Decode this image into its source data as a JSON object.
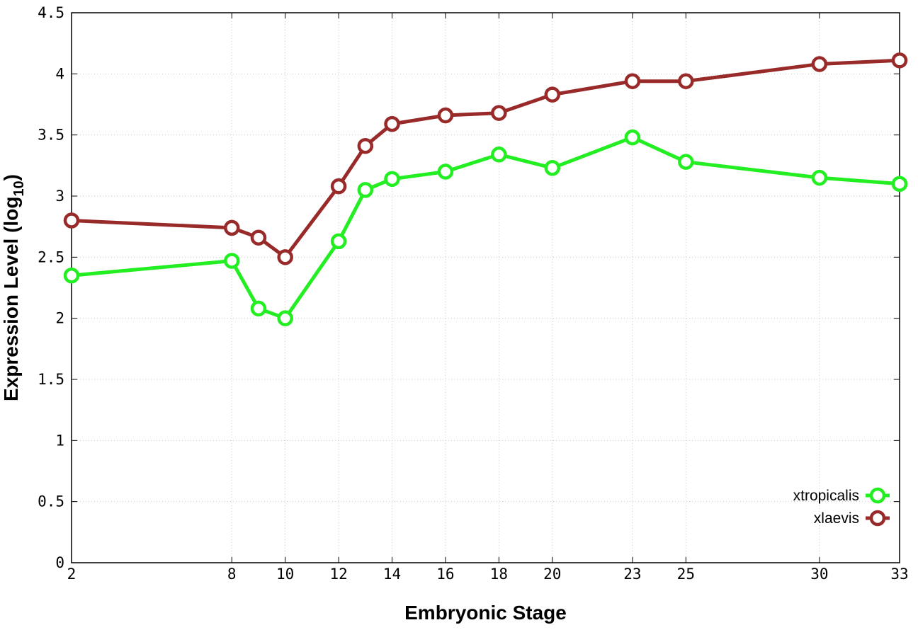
{
  "chart_data": {
    "type": "line",
    "xlabel": "Embryonic Stage",
    "ylabel_main": "Expression Level (log",
    "ylabel_sub": "10",
    "ylabel_close": ")",
    "x": [
      2,
      8,
      9,
      10,
      12,
      13,
      14,
      16,
      18,
      20,
      23,
      25,
      30,
      33
    ],
    "x_ticks": [
      {
        "value": 2,
        "label": "2"
      },
      {
        "value": 8,
        "label": "8"
      },
      {
        "value": 10,
        "label": "10"
      },
      {
        "value": 12,
        "label": "12"
      },
      {
        "value": 14,
        "label": "14"
      },
      {
        "value": 16,
        "label": "16"
      },
      {
        "value": 18,
        "label": "18"
      },
      {
        "value": 20,
        "label": "20"
      },
      {
        "value": 23,
        "label": "23"
      },
      {
        "value": 25,
        "label": "25"
      },
      {
        "value": 30,
        "label": "30"
      },
      {
        "value": 33,
        "label": "33"
      }
    ],
    "y_ticks": [
      {
        "value": 0,
        "label": "0"
      },
      {
        "value": 0.5,
        "label": "0.5"
      },
      {
        "value": 1,
        "label": "1"
      },
      {
        "value": 1.5,
        "label": "1.5"
      },
      {
        "value": 2,
        "label": "2"
      },
      {
        "value": 2.5,
        "label": "2.5"
      },
      {
        "value": 3,
        "label": "3"
      },
      {
        "value": 3.5,
        "label": "3.5"
      },
      {
        "value": 4,
        "label": "4"
      },
      {
        "value": 4.5,
        "label": "4.5"
      }
    ],
    "ylim": [
      0,
      4.5
    ],
    "grid": true,
    "legend_position": "bottom-right",
    "series": [
      {
        "name": "xtropicalis",
        "color": "#22ee22",
        "points": [
          [
            2,
            2.35
          ],
          [
            8,
            2.47
          ],
          [
            9,
            2.08
          ],
          [
            10,
            2.0
          ],
          [
            12,
            2.63
          ],
          [
            13,
            3.05
          ],
          [
            14,
            3.14
          ],
          [
            16,
            3.2
          ],
          [
            18,
            3.34
          ],
          [
            20,
            3.23
          ],
          [
            23,
            3.48
          ],
          [
            25,
            3.28
          ],
          [
            30,
            3.15
          ],
          [
            33,
            3.1
          ]
        ]
      },
      {
        "name": "xlaevis",
        "color": "#992a2a",
        "points": [
          [
            2,
            2.8
          ],
          [
            8,
            2.74
          ],
          [
            9,
            2.66
          ],
          [
            10,
            2.5
          ],
          [
            12,
            3.08
          ],
          [
            13,
            3.41
          ],
          [
            14,
            3.59
          ],
          [
            16,
            3.66
          ],
          [
            18,
            3.68
          ],
          [
            20,
            3.83
          ],
          [
            23,
            3.94
          ],
          [
            25,
            3.94
          ],
          [
            30,
            4.08
          ],
          [
            33,
            4.11
          ]
        ]
      }
    ]
  }
}
